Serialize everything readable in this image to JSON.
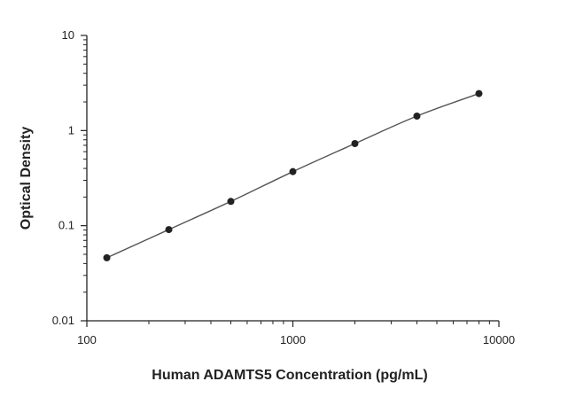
{
  "chart_data": {
    "type": "scatter",
    "title": "",
    "xlabel": "Human ADAMTS5 Concentration (pg/mL)",
    "ylabel": "Optical Density",
    "xscale": "log",
    "yscale": "log",
    "xlim": [
      100,
      10000
    ],
    "ylim": [
      0.01,
      10
    ],
    "xticks": [
      100,
      1000,
      10000
    ],
    "xtick_labels": [
      "100",
      "1000",
      "10000"
    ],
    "yticks": [
      0.01,
      0.1,
      1,
      10
    ],
    "ytick_labels": [
      "0.01",
      "0.1",
      "1",
      "10"
    ],
    "grid": false,
    "legend": "none",
    "series": [
      {
        "x": [
          125,
          250,
          500,
          1000,
          2000,
          4000,
          8000
        ],
        "y": [
          0.046,
          0.091,
          0.18,
          0.37,
          0.73,
          1.42,
          2.45
        ],
        "fit_curve": true
      }
    ],
    "colors": {
      "marker": "#222222",
      "curve": "#555555",
      "axis": "#222222"
    }
  }
}
